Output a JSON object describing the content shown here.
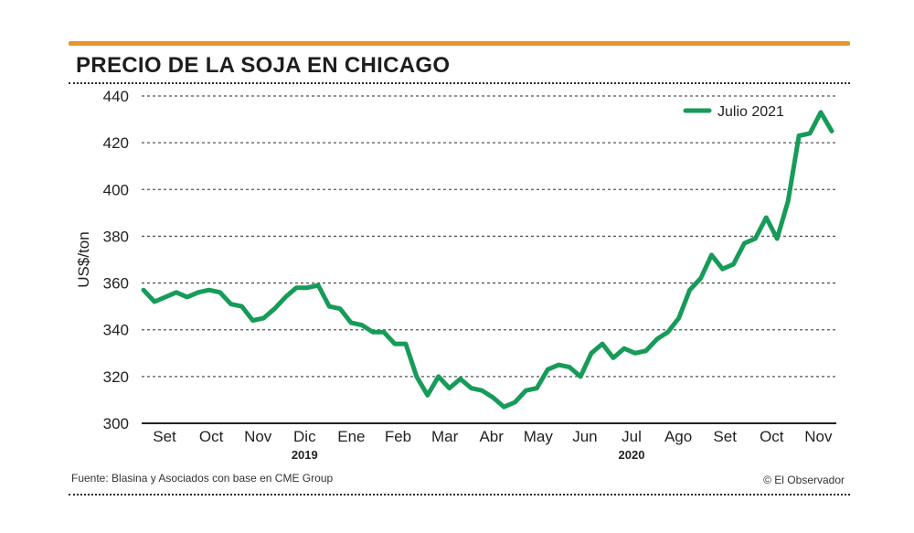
{
  "header": {
    "title": "PRECIO DE LA SOJA EN CHICAGO"
  },
  "footer": {
    "source": "Fuente: Blasina y Asociados con base en CME Group",
    "credit": "© El Observador"
  },
  "colors": {
    "accent_rule": "#e8932e",
    "series": "#169b58"
  },
  "chart_data": {
    "type": "line",
    "title": "PRECIO DE LA SOJA EN CHICAGO",
    "ylabel": "US$/ton",
    "xlabel": "",
    "ylim": [
      300,
      440
    ],
    "yticks": [
      300,
      320,
      340,
      360,
      380,
      400,
      420,
      440
    ],
    "grid": true,
    "legend_position": "top-right",
    "x_ticks": [
      "Set",
      "Oct",
      "Nov",
      "Dic",
      "Ene",
      "Feb",
      "Mar",
      "Abr",
      "May",
      "Jun",
      "Jul",
      "Ago",
      "Set",
      "Oct",
      "Nov"
    ],
    "year_labels": [
      {
        "label": "2019",
        "at": "Dic"
      },
      {
        "label": "2020",
        "at": "Jul"
      }
    ],
    "series": [
      {
        "name": "Julio 2021",
        "values": [
          357,
          352,
          354,
          356,
          354,
          356,
          357,
          356,
          351,
          350,
          344,
          345,
          349,
          354,
          358,
          358,
          359,
          350,
          349,
          343,
          342,
          339,
          339,
          334,
          334,
          320,
          312,
          320,
          315,
          319,
          315,
          314,
          311,
          307,
          309,
          314,
          315,
          323,
          325,
          324,
          320,
          330,
          334,
          328,
          332,
          330,
          331,
          336,
          339,
          345,
          357,
          362,
          372,
          366,
          368,
          377,
          379,
          388,
          379,
          395,
          423,
          424,
          433,
          425
        ]
      }
    ]
  }
}
